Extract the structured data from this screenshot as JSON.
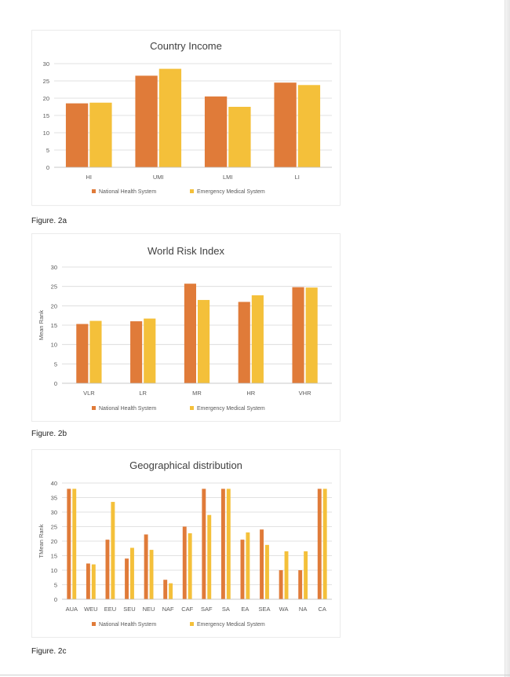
{
  "colors": {
    "national": "#E07B39",
    "emergency": "#F4C03A",
    "grid": "#d9d9d9",
    "text": "#595959",
    "title": "#404040"
  },
  "captions": {
    "fig2a": "Figure. 2a",
    "fig2b": "Figure. 2b",
    "fig2c": "Figure. 2c"
  },
  "chart_data": [
    {
      "id": "country-income",
      "type": "bar",
      "title": "Country Income",
      "xlabel": "",
      "ylabel": "",
      "categories": [
        "HI",
        "UMI",
        "LMI",
        "LI"
      ],
      "series": [
        {
          "name": "National Health System",
          "values": [
            18.5,
            26.5,
            20.5,
            24.5
          ]
        },
        {
          "name": "Emergency Medical System",
          "values": [
            18.7,
            28.5,
            17.5,
            23.8
          ]
        }
      ],
      "ylim": [
        0,
        30
      ],
      "yticks": [
        "0",
        "5",
        "10",
        "15",
        "20",
        "25",
        "30"
      ],
      "grid": true,
      "legend": "bottom"
    },
    {
      "id": "world-risk-index",
      "type": "bar",
      "title": "World Risk Index",
      "xlabel": "",
      "ylabel": "Mean Rank",
      "categories": [
        "VLR",
        "LR",
        "MR",
        "HR",
        "VHR"
      ],
      "series": [
        {
          "name": "National Health System",
          "values": [
            15.3,
            16.0,
            25.7,
            21.0,
            24.8
          ]
        },
        {
          "name": "Emergency Medical System",
          "values": [
            16.1,
            16.7,
            21.5,
            22.7,
            24.7
          ]
        }
      ],
      "ylim": [
        0,
        30
      ],
      "yticks": [
        "0",
        "5",
        "10",
        "15",
        "20",
        "25",
        "30"
      ],
      "grid": true,
      "legend": "bottom"
    },
    {
      "id": "geographical-distribution",
      "type": "bar",
      "title": "Geographical distribution",
      "xlabel": "",
      "ylabel": "TMean Rank",
      "categories": [
        "AUA",
        "WEU",
        "EEU",
        "SEU",
        "NEU",
        "NAF",
        "CAF",
        "SAF",
        "SA",
        "EA",
        "SEA",
        "WA",
        "NA",
        "CA"
      ],
      "series": [
        {
          "name": "National Health System",
          "values": [
            38,
            12.3,
            20.5,
            14,
            22.3,
            6.7,
            25,
            38,
            38,
            20.5,
            24,
            10,
            10,
            38
          ]
        },
        {
          "name": "Emergency Medical System",
          "values": [
            38,
            12,
            33.5,
            17.7,
            17,
            5.5,
            22.7,
            29,
            38,
            23,
            18.7,
            16.5,
            16.5,
            38
          ]
        }
      ],
      "ylim": [
        0,
        40
      ],
      "yticks": [
        "0",
        "5",
        "10",
        "15",
        "20",
        "25",
        "30",
        "35",
        "40"
      ],
      "grid": true,
      "legend": "bottom"
    }
  ]
}
